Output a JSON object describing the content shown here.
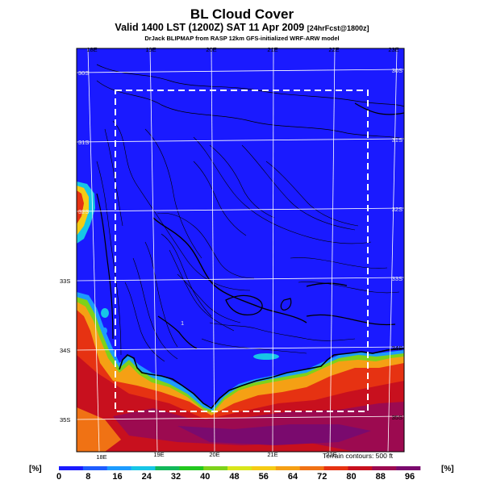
{
  "title": "BL Cloud Cover",
  "subtitle_main": "Valid 1400 LST (1200Z) SAT 11 Apr 2009",
  "subtitle_small": "[24hrFcst@1800z]",
  "credit": "DrJack BLIPMAP from RASP 12km GFS-initialized WRF-ARW model",
  "terrain_note": "Terrain contours: 500 ft",
  "unit_left": "[%]",
  "unit_right": "[%]",
  "lon_top": [
    "18E",
    "19E",
    "20E",
    "21E",
    "22E",
    "23E"
  ],
  "lon_bottom": [
    "18E",
    "19E",
    "20E",
    "21E",
    "22E"
  ],
  "lat_left": [
    "30S",
    "31S",
    "32S",
    "33S",
    "34S",
    "35S"
  ],
  "lat_right": [
    "30S",
    "31S",
    "32S",
    "33S",
    "34S",
    "35S"
  ],
  "point_marker": "1",
  "colorbar": {
    "ticks": [
      "0",
      "8",
      "16",
      "24",
      "32",
      "40",
      "48",
      "56",
      "64",
      "72",
      "80",
      "88",
      "96"
    ],
    "colors": [
      "#1a1aff",
      "#1e5cff",
      "#1c9bff",
      "#17c6e6",
      "#12b85a",
      "#22c81e",
      "#7dd21a",
      "#d8e61a",
      "#f5cc14",
      "#f5a014",
      "#f07214",
      "#e63212",
      "#c8101e",
      "#9c0a50",
      "#7a0a6e"
    ]
  }
}
